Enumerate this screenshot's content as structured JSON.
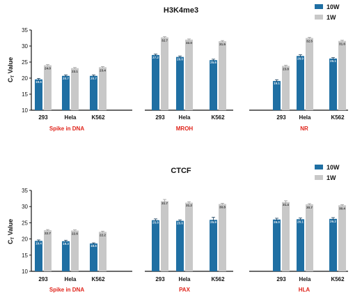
{
  "chart_data": [
    {
      "type": "bar",
      "title": "H3K4me3",
      "ylabel_main": "C",
      "ylabel_sub": "T",
      "ylabel_rest": " Value",
      "ylim": [
        10,
        35
      ],
      "yticks": [
        10,
        15,
        20,
        25,
        30,
        35
      ],
      "grid": false,
      "legend_position": "top-right",
      "groups": [
        {
          "label": "Spike in DNA",
          "categories": [
            "293",
            "Hela",
            "K562"
          ]
        },
        {
          "label": "MROH",
          "categories": [
            "293",
            "Hela",
            "K562"
          ]
        },
        {
          "label": "NR",
          "categories": [
            "293",
            "Hela",
            "K562"
          ]
        }
      ],
      "series": [
        {
          "name": "10W",
          "color": "#1f6fa3",
          "values": [
            19.6,
            20.7,
            20.7,
            27.2,
            26.6,
            25.6,
            19.1,
            26.9,
            26.1
          ],
          "labels": [
            "19.6",
            "20.7",
            "20.7",
            "27.2",
            "26.6",
            "25.6",
            "19.1",
            "26.9",
            "26.1"
          ],
          "errors": [
            0.3,
            0.3,
            0.3,
            0.3,
            0.3,
            0.3,
            0.4,
            0.4,
            0.3
          ]
        },
        {
          "name": "1W",
          "color": "#c8c8c8",
          "values": [
            24.0,
            23.1,
            23.4,
            32.7,
            32.0,
            31.5,
            23.8,
            32.5,
            31.6
          ],
          "labels": [
            "24.0",
            "23.1",
            "23.4",
            "32.7",
            "32.0",
            "31.5",
            "23.8",
            "32.5",
            "31.6"
          ],
          "errors": [
            0.2,
            0.2,
            0.2,
            0.2,
            0.2,
            0.2,
            0.2,
            0.2,
            0.2
          ]
        }
      ]
    },
    {
      "type": "bar",
      "title": "CTCF",
      "ylabel_main": "C",
      "ylabel_sub": "T",
      "ylabel_rest": " Value",
      "ylim": [
        10,
        35
      ],
      "yticks": [
        10,
        15,
        20,
        25,
        30,
        35
      ],
      "grid": false,
      "legend_position": "top-right",
      "groups": [
        {
          "label": "Spike in DNA",
          "categories": [
            "293",
            "Hela",
            "K562"
          ]
        },
        {
          "label": "PAX",
          "categories": [
            "293",
            "Hela",
            "K562"
          ]
        },
        {
          "label": "HLA",
          "categories": [
            "293",
            "Hela",
            "K562"
          ]
        }
      ],
      "series": [
        {
          "name": "10W",
          "color": "#1f6fa3",
          "values": [
            19.4,
            19.3,
            18.6,
            25.8,
            25.6,
            25.9,
            26.0,
            26.1,
            26.2
          ],
          "labels": [
            "19.4",
            "19.3",
            "18.6",
            "25.8",
            "25.6",
            "25.9",
            "26.0",
            "26.1",
            "26.2"
          ],
          "errors": [
            0.3,
            0.3,
            0.2,
            0.4,
            0.3,
            0.8,
            0.4,
            0.4,
            0.4
          ]
        },
        {
          "name": "1W",
          "color": "#c8c8c8",
          "values": [
            22.7,
            22.6,
            22.2,
            31.7,
            31.2,
            30.8,
            31.4,
            30.7,
            30.4
          ],
          "labels": [
            "22.7",
            "22.6",
            "22.2",
            "31.7",
            "31.2",
            "30.8",
            "31.4",
            "30.7",
            "30.4"
          ],
          "errors": [
            0.2,
            0.2,
            0.2,
            0.5,
            0.3,
            0.2,
            0.4,
            0.2,
            0.2
          ]
        }
      ]
    }
  ]
}
